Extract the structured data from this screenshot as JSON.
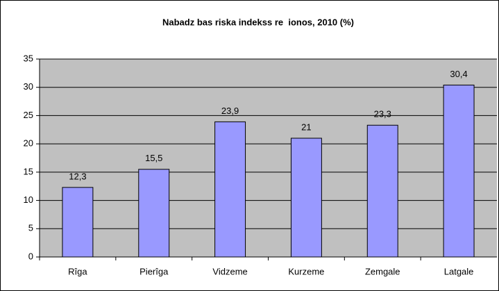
{
  "chart_data": {
    "type": "bar",
    "title": "Nabadz bas riska indekss re  ionos, 2010 (%)",
    "categories": [
      "Rîga",
      "Pierîga",
      "Vidzeme",
      "Kurzeme",
      "Zemgale",
      "Latgale"
    ],
    "values": [
      12.3,
      15.5,
      23.9,
      21,
      23.3,
      30.4
    ],
    "value_labels": [
      "12,3",
      "15,5",
      "23,9",
      "21",
      "23,3",
      "30,4"
    ],
    "color": "#9999ff",
    "ylim": [
      0,
      35
    ],
    "yticks": [
      0,
      5,
      10,
      15,
      20,
      25,
      30,
      35
    ],
    "grid": true
  }
}
